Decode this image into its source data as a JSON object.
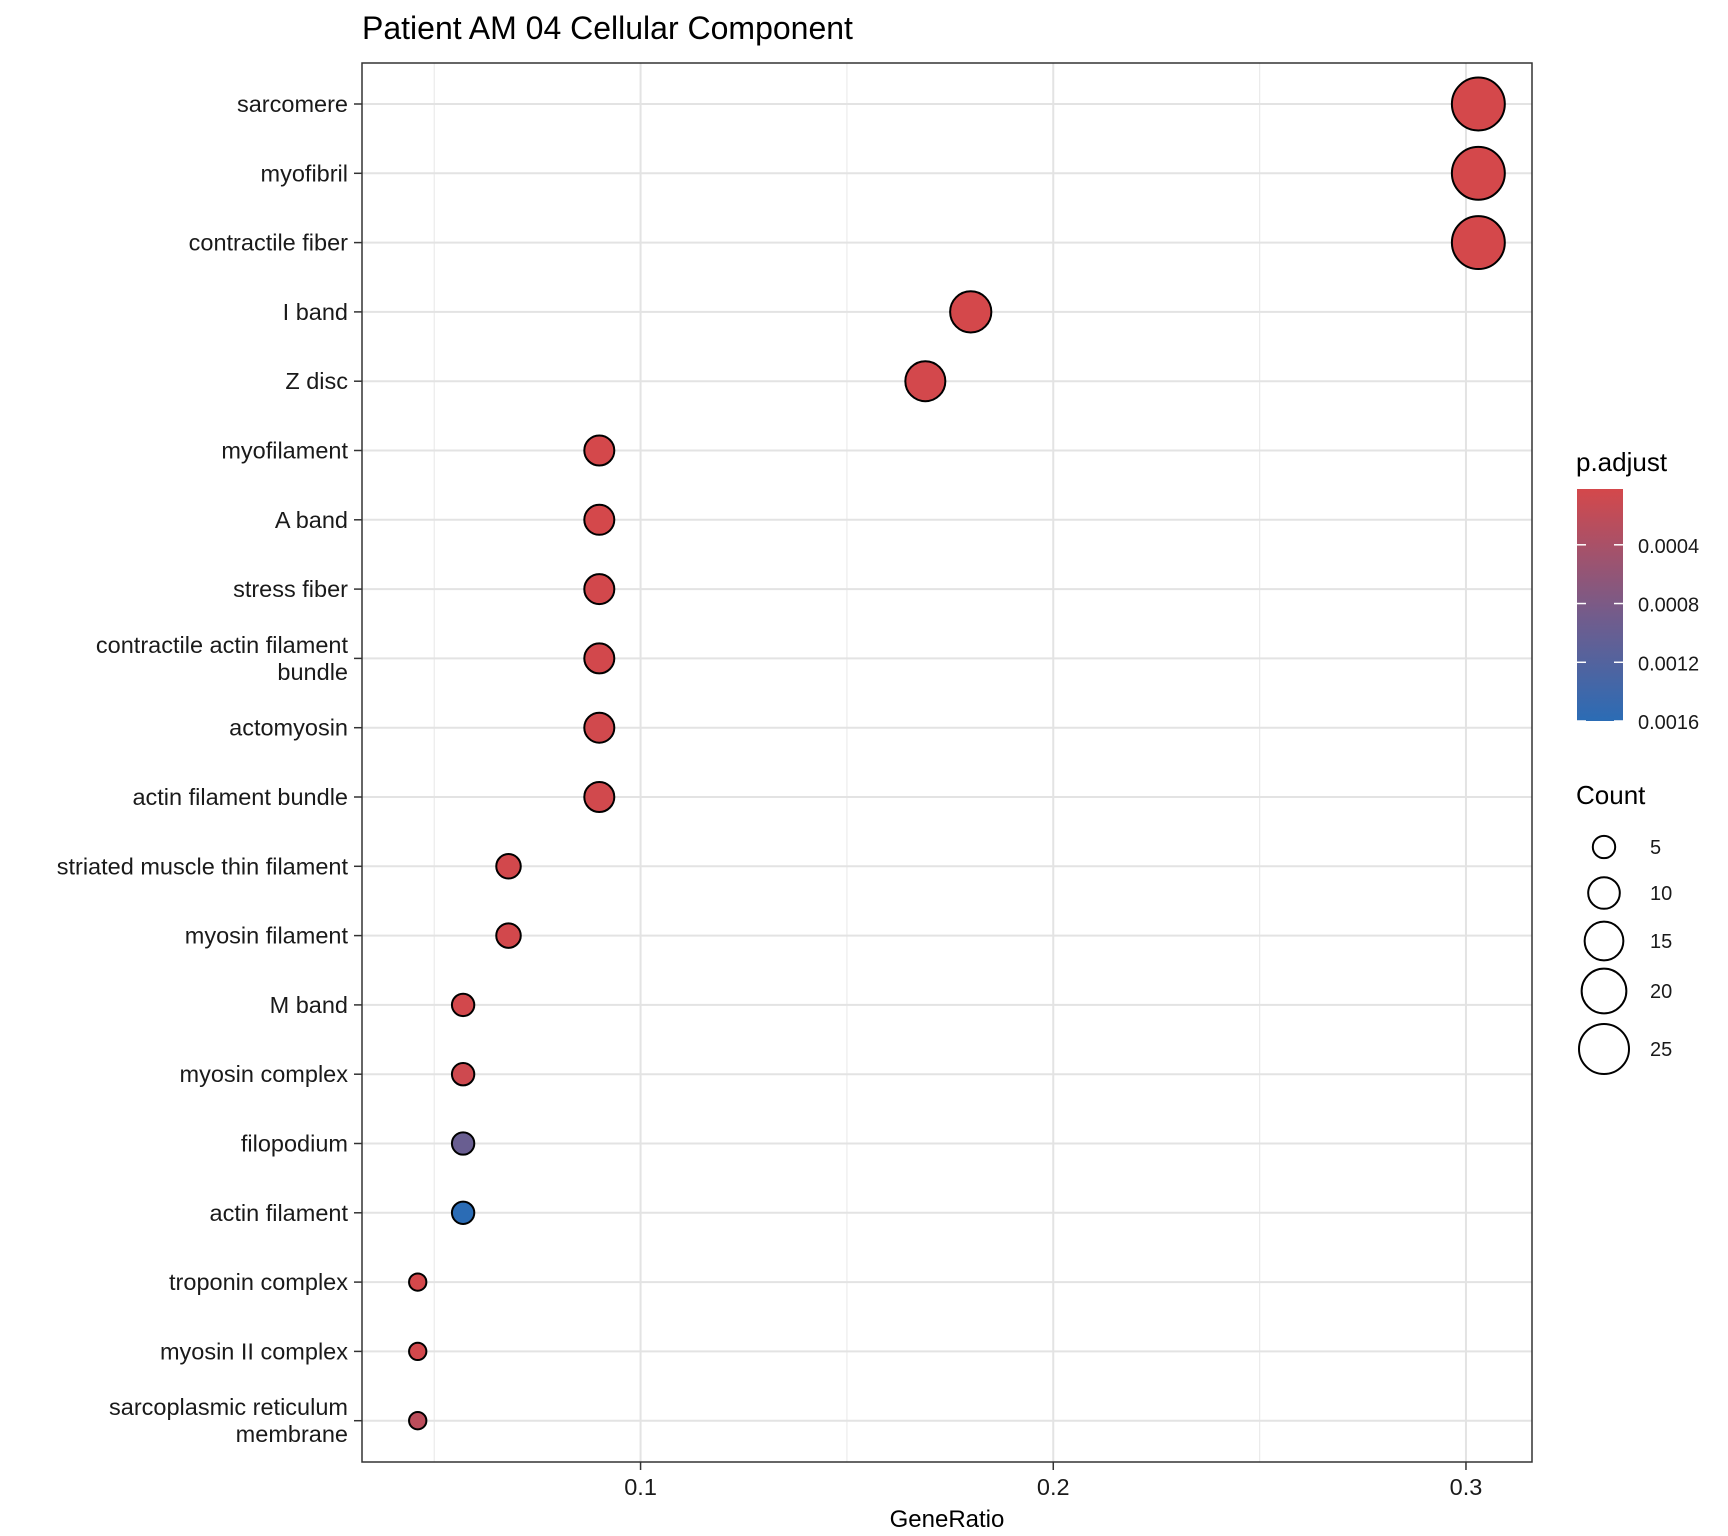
{
  "chart_data": {
    "type": "scatter",
    "title": "Patient AM 04 Cellular Component",
    "xlabel": "GeneRatio",
    "ylabel": "",
    "xlim": [
      0.0325,
      0.316
    ],
    "x_ticks": [
      {
        "value": 0.1,
        "label": "0.1"
      },
      {
        "value": 0.2,
        "label": "0.2"
      },
      {
        "value": 0.3,
        "label": "0.3"
      }
    ],
    "x_minor_ticks": [
      0.05,
      0.15,
      0.25
    ],
    "grid": true,
    "legend_position": "right",
    "color_legend": {
      "title": "p.adjust",
      "low_color": "#D4484B",
      "high_color": "#2B6CB5",
      "range": [
        2e-05,
        0.0016
      ],
      "ticks": [
        {
          "value": 0.0004,
          "label": "0.0004"
        },
        {
          "value": 0.0008,
          "label": "0.0008"
        },
        {
          "value": 0.0012,
          "label": "0.0012"
        },
        {
          "value": 0.0016,
          "label": "0.0016"
        }
      ]
    },
    "size_legend": {
      "title": "Count",
      "values": [
        5,
        10,
        15,
        20,
        25
      ],
      "labels": [
        "5",
        "10",
        "15",
        "20",
        "25"
      ]
    },
    "points": [
      {
        "category": [
          "sarcomere"
        ],
        "gene_ratio": 0.303,
        "count": 28,
        "p_adjust": 2e-05
      },
      {
        "category": [
          "myofibril"
        ],
        "gene_ratio": 0.303,
        "count": 28,
        "p_adjust": 2e-05
      },
      {
        "category": [
          "contractile fiber"
        ],
        "gene_ratio": 0.303,
        "count": 28,
        "p_adjust": 2e-05
      },
      {
        "category": [
          "I band"
        ],
        "gene_ratio": 0.18,
        "count": 17,
        "p_adjust": 2e-05
      },
      {
        "category": [
          "Z disc"
        ],
        "gene_ratio": 0.169,
        "count": 16,
        "p_adjust": 3e-05
      },
      {
        "category": [
          "myofilament"
        ],
        "gene_ratio": 0.09,
        "count": 9,
        "p_adjust": 2e-05
      },
      {
        "category": [
          "A band"
        ],
        "gene_ratio": 0.09,
        "count": 9,
        "p_adjust": 2e-05
      },
      {
        "category": [
          "stress fiber"
        ],
        "gene_ratio": 0.09,
        "count": 9,
        "p_adjust": 4e-05
      },
      {
        "category": [
          "contractile actin filament",
          "bundle"
        ],
        "gene_ratio": 0.09,
        "count": 9,
        "p_adjust": 4e-05
      },
      {
        "category": [
          "actomyosin"
        ],
        "gene_ratio": 0.09,
        "count": 9,
        "p_adjust": 5e-05
      },
      {
        "category": [
          "actin filament bundle"
        ],
        "gene_ratio": 0.09,
        "count": 9,
        "p_adjust": 5e-05
      },
      {
        "category": [
          "striated muscle thin filament"
        ],
        "gene_ratio": 0.068,
        "count": 6,
        "p_adjust": 4e-05
      },
      {
        "category": [
          "myosin filament"
        ],
        "gene_ratio": 0.068,
        "count": 6,
        "p_adjust": 4e-05
      },
      {
        "category": [
          "M band"
        ],
        "gene_ratio": 0.057,
        "count": 5,
        "p_adjust": 4e-05
      },
      {
        "category": [
          "myosin complex"
        ],
        "gene_ratio": 0.057,
        "count": 5,
        "p_adjust": 8e-05
      },
      {
        "category": [
          "filopodium"
        ],
        "gene_ratio": 0.057,
        "count": 5,
        "p_adjust": 0.00105
      },
      {
        "category": [
          "actin filament"
        ],
        "gene_ratio": 0.057,
        "count": 5,
        "p_adjust": 0.0016
      },
      {
        "category": [
          "troponin complex"
        ],
        "gene_ratio": 0.046,
        "count": 3,
        "p_adjust": 2e-05
      },
      {
        "category": [
          "myosin II complex"
        ],
        "gene_ratio": 0.046,
        "count": 3,
        "p_adjust": 4e-05
      },
      {
        "category": [
          "sarcoplasmic reticulum",
          "membrane"
        ],
        "gene_ratio": 0.046,
        "count": 3,
        "p_adjust": 0.00025
      }
    ]
  }
}
